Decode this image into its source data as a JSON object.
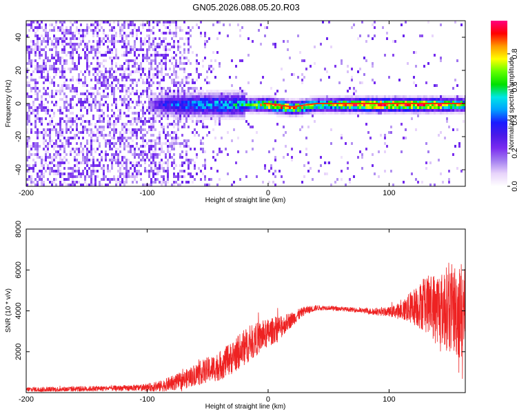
{
  "title": "GN05.2026.088.05.20.R03",
  "colors": {
    "snr_line": "#ee2222",
    "axes": "#000000",
    "background": "#ffffff",
    "colorbar_stops": [
      "#ffffff",
      "#e8d4fb",
      "#a47ff0",
      "#7a2cf0",
      "#4a1ae8",
      "#1a1aff",
      "#00a0ff",
      "#00e6e6",
      "#00e000",
      "#60ff00",
      "#ffff00",
      "#ff9900",
      "#ff0000",
      "#ff0080"
    ]
  },
  "chart_data": [
    {
      "type": "heatmap",
      "name": "spectrogram",
      "title": "GN05.2026.088.05.20.R03",
      "xlabel": "Height of straight line (km)",
      "ylabel": "Frequency (Hz)",
      "xlim": [
        -200,
        163
      ],
      "ylim": [
        -50,
        50
      ],
      "x_ticks": [
        -200,
        -100,
        0,
        100
      ],
      "y_ticks": [
        -40,
        -20,
        0,
        20,
        40
      ],
      "grid": false,
      "colorbar": {
        "label": "Normalized spectral amplitude",
        "range": [
          0,
          1
        ],
        "ticks": [
          0.0,
          0.2,
          0.4,
          0.6,
          0.8
        ]
      },
      "description_points": {
        "x": [
          -200,
          -150,
          -100,
          -80,
          -60,
          -40,
          -20,
          0,
          20,
          40,
          60,
          80,
          100,
          120,
          140,
          160
        ],
        "center_freq_hz": [
          0,
          0,
          0,
          0,
          0,
          0,
          0,
          0,
          -2,
          0,
          0,
          0,
          0,
          0,
          0,
          0
        ],
        "ridge_amplitude": [
          0.15,
          0.15,
          0.2,
          0.4,
          0.45,
          0.5,
          0.55,
          0.85,
          0.8,
          0.65,
          0.75,
          0.95,
          0.9,
          0.9,
          0.85,
          0.7
        ]
      }
    },
    {
      "type": "line",
      "name": "snr",
      "xlabel": "Height of straight line (km)",
      "ylabel": "SNR (10 * v/v)",
      "xlim": [
        -200,
        163
      ],
      "ylim": [
        0,
        8000
      ],
      "x_ticks": [
        -200,
        -100,
        0,
        100
      ],
      "y_ticks": [
        2000,
        4000,
        6000,
        8000
      ],
      "grid": false,
      "series": [
        {
          "x": [
            -200,
            -180,
            -160,
            -140,
            -120,
            -100,
            -90,
            -80,
            -70,
            -60,
            -50,
            -40,
            -30,
            -20,
            -10,
            0,
            10,
            20,
            30,
            40,
            50,
            60,
            70,
            80,
            90,
            100,
            110,
            120,
            130,
            140,
            150,
            160
          ],
          "values": [
            150,
            150,
            180,
            200,
            220,
            250,
            300,
            450,
            600,
            900,
            1100,
            1300,
            1700,
            2200,
            2600,
            2900,
            3200,
            3600,
            4000,
            4150,
            4150,
            4100,
            4050,
            4000,
            3950,
            3950,
            4000,
            4200,
            4300,
            4200,
            4100,
            4000
          ],
          "spread": [
            150,
            150,
            150,
            150,
            150,
            200,
            300,
            400,
            500,
            600,
            700,
            800,
            900,
            1000,
            900,
            800,
            600,
            400,
            250,
            150,
            120,
            120,
            120,
            150,
            200,
            250,
            500,
            1000,
            1500,
            2000,
            2400,
            2800
          ]
        }
      ]
    }
  ]
}
